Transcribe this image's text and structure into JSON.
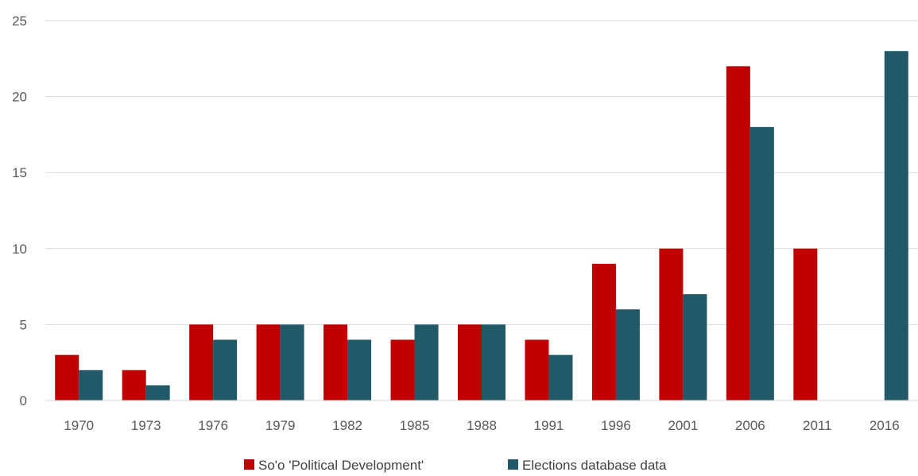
{
  "chart_data": {
    "type": "bar",
    "categories": [
      "1970",
      "1973",
      "1976",
      "1979",
      "1982",
      "1985",
      "1988",
      "1991",
      "1996",
      "2001",
      "2006",
      "2011",
      "2016"
    ],
    "series": [
      {
        "name": "So'o 'Political Development'",
        "color": "#c00000",
        "values": [
          3,
          2,
          5,
          5,
          5,
          4,
          5,
          4,
          9,
          10,
          22,
          10,
          null
        ]
      },
      {
        "name": "Elections database data",
        "color": "#215968",
        "values": [
          2,
          1,
          4,
          5,
          4,
          5,
          5,
          3,
          6,
          7,
          18,
          null,
          23
        ]
      }
    ],
    "ylim": [
      0,
      25
    ],
    "yticks": [
      "0",
      "5",
      "10",
      "15",
      "20",
      "25"
    ],
    "grid": true,
    "legend_position": "bottom-center"
  }
}
